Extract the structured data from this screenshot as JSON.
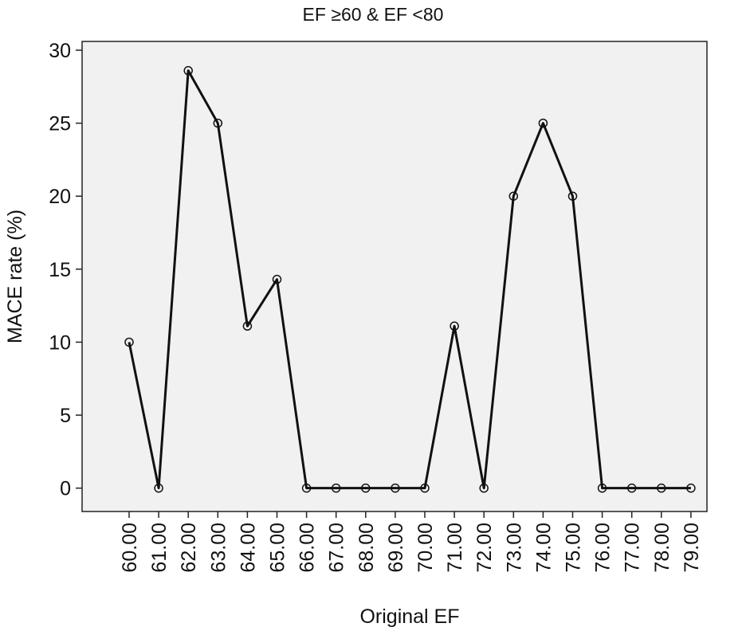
{
  "chart_data": {
    "type": "line",
    "title": "EF ≥60 & EF <80",
    "xlabel": "Original EF",
    "ylabel": "MACE rate (%)",
    "categories": [
      "60.00",
      "61.00",
      "62.00",
      "63.00",
      "64.00",
      "65.00",
      "66.00",
      "67.00",
      "68.00",
      "69.00",
      "70.00",
      "71.00",
      "72.00",
      "73.00",
      "74.00",
      "75.00",
      "76.00",
      "77.00",
      "78.00",
      "79.00"
    ],
    "series": [
      {
        "values": [
          10.0,
          0,
          28.6,
          25.0,
          11.1,
          14.3,
          0,
          0,
          0,
          0,
          0,
          11.1,
          0,
          20.0,
          25.0,
          20.0,
          0,
          0,
          0,
          0
        ]
      }
    ],
    "yticks": [
      0,
      5,
      10,
      15,
      20,
      25,
      30
    ],
    "ylim": [
      -1.6,
      30.6
    ],
    "grid": false,
    "markers": "open-circle",
    "colors": {
      "line": "#111111",
      "plot_background": "#f1f1f1"
    }
  }
}
